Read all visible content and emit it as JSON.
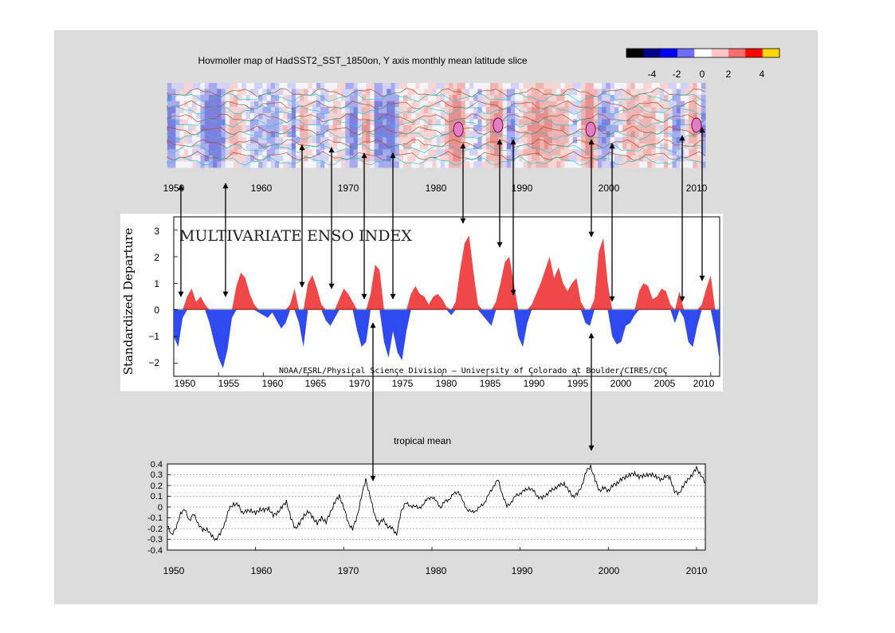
{
  "hovmoller": {
    "title": "Hovmoller map of HadSST2_SST_1850on, Y axis monthly mean latitude slice",
    "colorbar_ticks": [
      "-4",
      "-2",
      "0",
      "2",
      "4"
    ],
    "colorbar_colors": [
      "#000000",
      "#00008b",
      "#0000ff",
      "#6e6eff",
      "#ffffff",
      "#ffc8c8",
      "#ff6e6e",
      "#ff0000",
      "#ffd700"
    ],
    "x_ticks": [
      "1950",
      "1960",
      "1970",
      "1980",
      "1990",
      "2000",
      "2010"
    ],
    "xlim": [
      1950,
      2011
    ]
  },
  "enso": {
    "title": "MULTIVARIATE ENSO INDEX",
    "ylabel": "Standardized Departure",
    "credit": "NOAA/ESRL/Physical Science Division – University of Colorado at Boulder/CIRES/CDC",
    "x_ticks": [
      "1950",
      "1955",
      "1960",
      "1965",
      "1970",
      "1975",
      "1980",
      "1985",
      "1990",
      "1995",
      "2000",
      "2005",
      "2010"
    ],
    "y_ticks": [
      "3",
      "2",
      "1",
      "0",
      "−1",
      "−2"
    ],
    "positive_color": "#f04848",
    "negative_color": "#2f4bf0"
  },
  "tropical": {
    "title": "tropical mean",
    "y_ticks": [
      "0.4",
      "0.3",
      "0.2",
      "0.1",
      "0",
      "-0.1",
      "-0.2",
      "-0.3",
      "-0.4"
    ],
    "x_ticks": [
      "1950",
      "1960",
      "1970",
      "1980",
      "1990",
      "2000",
      "2010"
    ]
  },
  "chart_data": [
    {
      "type": "heatmap",
      "title": "Hovmoller map of HadSST2_SST_1850on, Y axis monthly mean latitude slice",
      "xlim": [
        1950,
        2011
      ],
      "colorbar_range": [
        -5,
        5
      ],
      "colorbar_ticks": [
        -4,
        -2,
        0,
        2,
        4
      ]
    },
    {
      "type": "area",
      "title": "MULTIVARIATE ENSO INDEX",
      "ylabel": "Standardized Departure",
      "xlim": [
        1950,
        2011
      ],
      "ylim": [
        -2.5,
        3.5
      ],
      "x": [
        1950.0,
        1950.5,
        1951.0,
        1951.5,
        1952.0,
        1952.5,
        1953.0,
        1953.5,
        1954.0,
        1954.5,
        1955.0,
        1955.5,
        1956.0,
        1956.5,
        1957.0,
        1957.5,
        1958.0,
        1958.5,
        1959.0,
        1959.5,
        1960.0,
        1960.5,
        1961.0,
        1961.5,
        1962.0,
        1962.5,
        1963.0,
        1963.5,
        1964.0,
        1964.5,
        1965.0,
        1965.5,
        1966.0,
        1966.5,
        1967.0,
        1967.5,
        1968.0,
        1968.5,
        1969.0,
        1969.5,
        1970.0,
        1970.5,
        1971.0,
        1971.5,
        1972.0,
        1972.5,
        1973.0,
        1973.5,
        1974.0,
        1974.5,
        1975.0,
        1975.5,
        1976.0,
        1976.5,
        1977.0,
        1977.5,
        1978.0,
        1978.5,
        1979.0,
        1979.5,
        1980.0,
        1980.5,
        1981.0,
        1981.5,
        1982.0,
        1982.5,
        1983.0,
        1983.5,
        1984.0,
        1984.5,
        1985.0,
        1985.5,
        1986.0,
        1986.5,
        1987.0,
        1987.5,
        1988.0,
        1988.5,
        1989.0,
        1989.5,
        1990.0,
        1990.5,
        1991.0,
        1991.5,
        1992.0,
        1992.5,
        1993.0,
        1993.5,
        1994.0,
        1994.5,
        1995.0,
        1995.5,
        1996.0,
        1996.5,
        1997.0,
        1997.5,
        1998.0,
        1998.5,
        1999.0,
        1999.5,
        2000.0,
        2000.5,
        2001.0,
        2001.5,
        2002.0,
        2002.5,
        2003.0,
        2003.5,
        2004.0,
        2004.5,
        2005.0,
        2005.5,
        2006.0,
        2006.5,
        2007.0,
        2007.5,
        2008.0,
        2008.5,
        2009.0,
        2009.5,
        2010.0,
        2010.5,
        2011.0
      ],
      "values": [
        -1.0,
        -1.4,
        -0.3,
        0.5,
        0.8,
        0.3,
        0.5,
        0.2,
        -0.5,
        -1.2,
        -1.8,
        -2.2,
        -1.5,
        -0.3,
        0.9,
        1.4,
        1.2,
        0.6,
        0.2,
        -0.1,
        -0.2,
        -0.3,
        -0.1,
        -0.4,
        -0.7,
        -0.5,
        0.2,
        0.8,
        -0.5,
        -1.4,
        1.0,
        1.3,
        0.8,
        0.2,
        -0.4,
        -0.6,
        -0.3,
        0.4,
        0.8,
        0.6,
        0.3,
        -0.8,
        -1.4,
        -1.2,
        0.6,
        1.7,
        1.5,
        -1.2,
        -1.8,
        -0.8,
        -1.6,
        -1.9,
        -0.8,
        0.6,
        0.9,
        0.6,
        0.5,
        0.2,
        0.5,
        0.6,
        0.4,
        0.1,
        -0.2,
        0.3,
        1.5,
        2.5,
        2.8,
        1.4,
        0.2,
        -0.2,
        -0.4,
        -0.6,
        0.3,
        1.0,
        1.8,
        2.0,
        1.0,
        -1.0,
        -1.4,
        -0.5,
        0.2,
        0.6,
        1.0,
        1.5,
        2.0,
        1.2,
        1.6,
        1.0,
        0.7,
        1.0,
        1.2,
        0.3,
        -0.5,
        -0.6,
        0.4,
        2.2,
        2.7,
        1.0,
        -1.0,
        -1.3,
        -1.2,
        -0.6,
        -0.5,
        -0.2,
        0.7,
        1.0,
        0.9,
        0.4,
        0.5,
        0.8,
        0.7,
        0.2,
        -0.5,
        0.7,
        -0.3,
        -1.2,
        -1.4,
        -0.6,
        0.2,
        0.8,
        1.3,
        -0.8,
        -1.9
      ]
    },
    {
      "type": "line",
      "title": "tropical mean",
      "xlim": [
        1950,
        2011
      ],
      "ylim": [
        -0.4,
        0.4
      ],
      "x": [
        1950.0,
        1950.5,
        1951.0,
        1951.5,
        1952.0,
        1952.5,
        1953.0,
        1953.5,
        1954.0,
        1954.5,
        1955.0,
        1955.5,
        1956.0,
        1956.5,
        1957.0,
        1957.5,
        1958.0,
        1958.5,
        1959.0,
        1959.5,
        1960.0,
        1960.5,
        1961.0,
        1961.5,
        1962.0,
        1962.5,
        1963.0,
        1963.5,
        1964.0,
        1964.5,
        1965.0,
        1965.5,
        1966.0,
        1966.5,
        1967.0,
        1967.5,
        1968.0,
        1968.5,
        1969.0,
        1969.5,
        1970.0,
        1970.5,
        1971.0,
        1971.5,
        1972.0,
        1972.5,
        1973.0,
        1973.5,
        1974.0,
        1974.5,
        1975.0,
        1975.5,
        1976.0,
        1976.5,
        1977.0,
        1977.5,
        1978.0,
        1978.5,
        1979.0,
        1979.5,
        1980.0,
        1980.5,
        1981.0,
        1981.5,
        1982.0,
        1982.5,
        1983.0,
        1983.5,
        1984.0,
        1984.5,
        1985.0,
        1985.5,
        1986.0,
        1986.5,
        1987.0,
        1987.5,
        1988.0,
        1988.5,
        1989.0,
        1989.5,
        1990.0,
        1990.5,
        1991.0,
        1991.5,
        1992.0,
        1992.5,
        1993.0,
        1993.5,
        1994.0,
        1994.5,
        1995.0,
        1995.5,
        1996.0,
        1996.5,
        1997.0,
        1997.5,
        1998.0,
        1998.5,
        1999.0,
        1999.5,
        2000.0,
        2000.5,
        2001.0,
        2001.5,
        2002.0,
        2002.5,
        2003.0,
        2003.5,
        2004.0,
        2004.5,
        2005.0,
        2005.5,
        2006.0,
        2006.5,
        2007.0,
        2007.5,
        2008.0,
        2008.5,
        2009.0,
        2009.5,
        2010.0,
        2010.5,
        2011.0
      ],
      "values": [
        -0.18,
        -0.25,
        -0.2,
        -0.05,
        -0.03,
        -0.12,
        -0.07,
        -0.15,
        -0.22,
        -0.2,
        -0.27,
        -0.3,
        -0.25,
        -0.15,
        -0.02,
        0.03,
        0.02,
        -0.05,
        -0.04,
        -0.03,
        -0.06,
        -0.02,
        -0.03,
        -0.01,
        -0.08,
        -0.05,
        0.0,
        0.05,
        -0.1,
        -0.2,
        -0.15,
        -0.08,
        -0.04,
        -0.1,
        -0.15,
        -0.1,
        -0.14,
        -0.05,
        0.05,
        0.1,
        0.0,
        -0.15,
        -0.2,
        -0.1,
        0.1,
        0.25,
        0.1,
        -0.08,
        -0.15,
        -0.12,
        -0.18,
        -0.2,
        -0.25,
        -0.05,
        0.05,
        0.0,
        0.02,
        -0.02,
        0.03,
        0.07,
        0.1,
        0.05,
        0.0,
        0.05,
        0.08,
        0.12,
        0.15,
        0.05,
        -0.02,
        -0.05,
        -0.03,
        0.0,
        0.05,
        0.12,
        0.2,
        0.25,
        0.12,
        0.0,
        0.05,
        0.1,
        0.13,
        0.15,
        0.18,
        0.15,
        0.1,
        0.08,
        0.12,
        0.15,
        0.18,
        0.2,
        0.22,
        0.15,
        0.1,
        0.12,
        0.2,
        0.33,
        0.38,
        0.25,
        0.15,
        0.18,
        0.15,
        0.2,
        0.22,
        0.26,
        0.28,
        0.3,
        0.31,
        0.28,
        0.29,
        0.3,
        0.3,
        0.28,
        0.25,
        0.29,
        0.27,
        0.15,
        0.12,
        0.2,
        0.25,
        0.3,
        0.36,
        0.3,
        0.22
      ]
    }
  ]
}
